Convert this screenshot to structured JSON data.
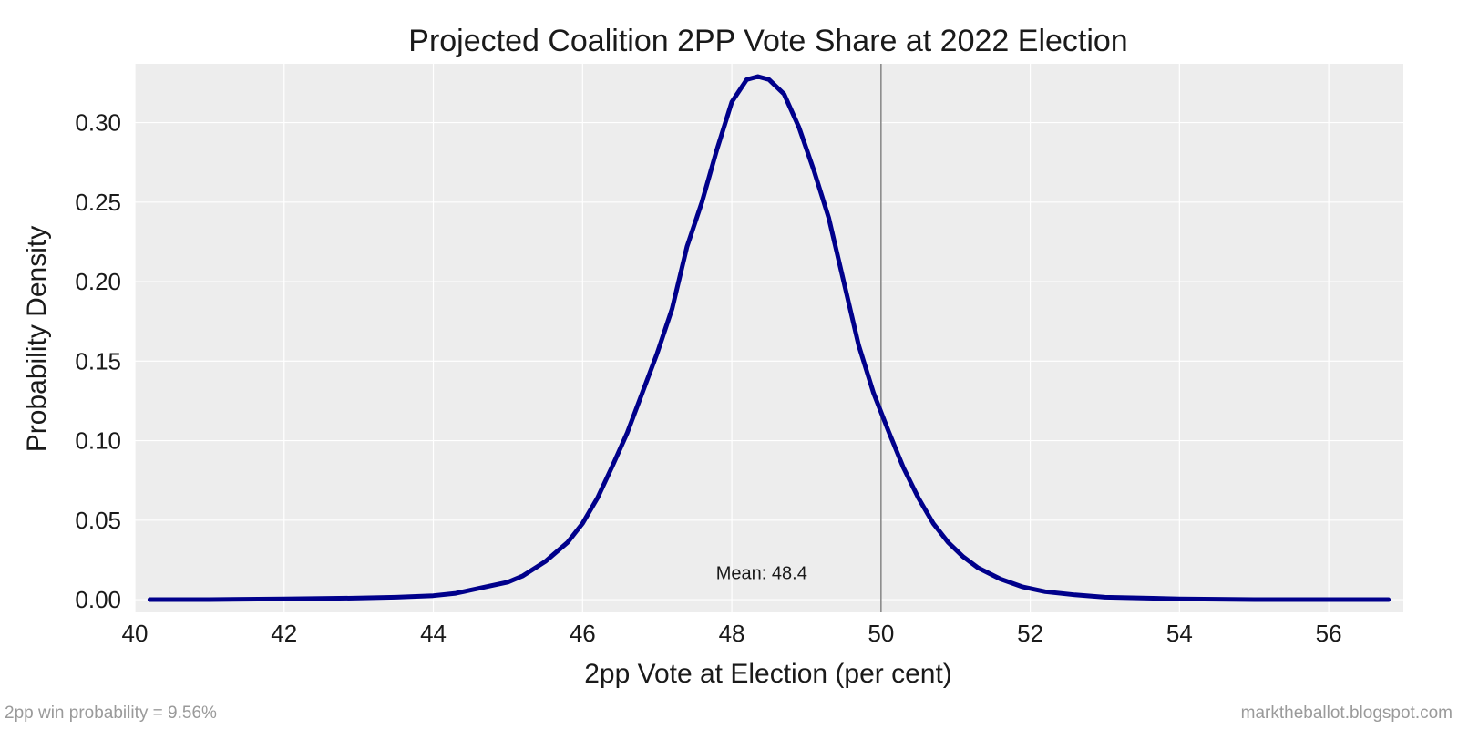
{
  "chart_data": {
    "type": "line",
    "title": "Projected Coalition 2PP Vote Share at 2022 Election",
    "xlabel": "2pp Vote at Election (per cent)",
    "ylabel": "Probability Density",
    "xlim": [
      40.0,
      57.0
    ],
    "ylim": [
      -0.008,
      0.337
    ],
    "x_ticks": [
      40,
      42,
      44,
      46,
      48,
      50,
      52,
      54,
      56
    ],
    "x_tick_labels": [
      "40",
      "42",
      "44",
      "46",
      "48",
      "50",
      "52",
      "54",
      "56"
    ],
    "y_ticks": [
      0.0,
      0.05,
      0.1,
      0.15,
      0.2,
      0.25,
      0.3
    ],
    "y_tick_labels": [
      "0.00",
      "0.05",
      "0.10",
      "0.15",
      "0.20",
      "0.25",
      "0.30"
    ],
    "grid": true,
    "background_color": "#ededed",
    "grid_color": "#ffffff",
    "reference_line": {
      "x": 50.0,
      "color": "#8c8c8c"
    },
    "annotation": {
      "text": "Mean: 48.4",
      "x": 48.4,
      "y": 0.017
    },
    "series": [
      {
        "color": "#00008b",
        "x": [
          40.2,
          41.0,
          42.0,
          43.0,
          43.5,
          44.0,
          44.3,
          44.5,
          44.7,
          45.0,
          45.2,
          45.5,
          45.8,
          46.0,
          46.2,
          46.4,
          46.6,
          46.8,
          47.0,
          47.2,
          47.4,
          47.6,
          47.8,
          48.0,
          48.2,
          48.35,
          48.5,
          48.7,
          48.9,
          49.1,
          49.3,
          49.5,
          49.7,
          49.9,
          50.1,
          50.3,
          50.5,
          50.7,
          50.9,
          51.1,
          51.3,
          51.6,
          51.9,
          52.2,
          52.6,
          53.0,
          53.5,
          54.0,
          55.0,
          56.0,
          56.8
        ],
        "y": [
          0.0,
          0.0,
          0.0005,
          0.001,
          0.0015,
          0.0025,
          0.004,
          0.006,
          0.008,
          0.011,
          0.015,
          0.024,
          0.036,
          0.048,
          0.064,
          0.084,
          0.105,
          0.13,
          0.155,
          0.183,
          0.222,
          0.25,
          0.283,
          0.313,
          0.327,
          0.329,
          0.327,
          0.318,
          0.297,
          0.27,
          0.24,
          0.2,
          0.16,
          0.13,
          0.106,
          0.083,
          0.064,
          0.048,
          0.036,
          0.027,
          0.02,
          0.013,
          0.008,
          0.005,
          0.003,
          0.0015,
          0.001,
          0.0005,
          0.0,
          0.0,
          0.0
        ]
      }
    ]
  },
  "footer": {
    "left_note": "2pp win probability = 9.56%",
    "right_note": "marktheballot.blogspot.com"
  }
}
